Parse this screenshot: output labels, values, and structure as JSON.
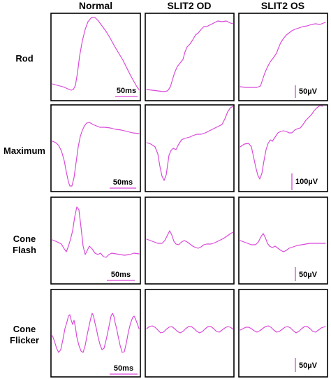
{
  "columns": [
    "Normal",
    "SLIT2 OD",
    "SLIT2 OS"
  ],
  "rows": [
    {
      "label_lines": [
        "Rod"
      ]
    },
    {
      "label_lines": [
        "Maximum"
      ]
    },
    {
      "label_lines": [
        "Cone",
        "Flash"
      ]
    },
    {
      "label_lines": [
        "Cone",
        "Flicker"
      ]
    }
  ],
  "trace_color": "#d946d9",
  "time_scale_label": "50ms",
  "amplitude_scale_labels": [
    "50µV",
    "100µV",
    "50µV",
    "50µV"
  ]
}
